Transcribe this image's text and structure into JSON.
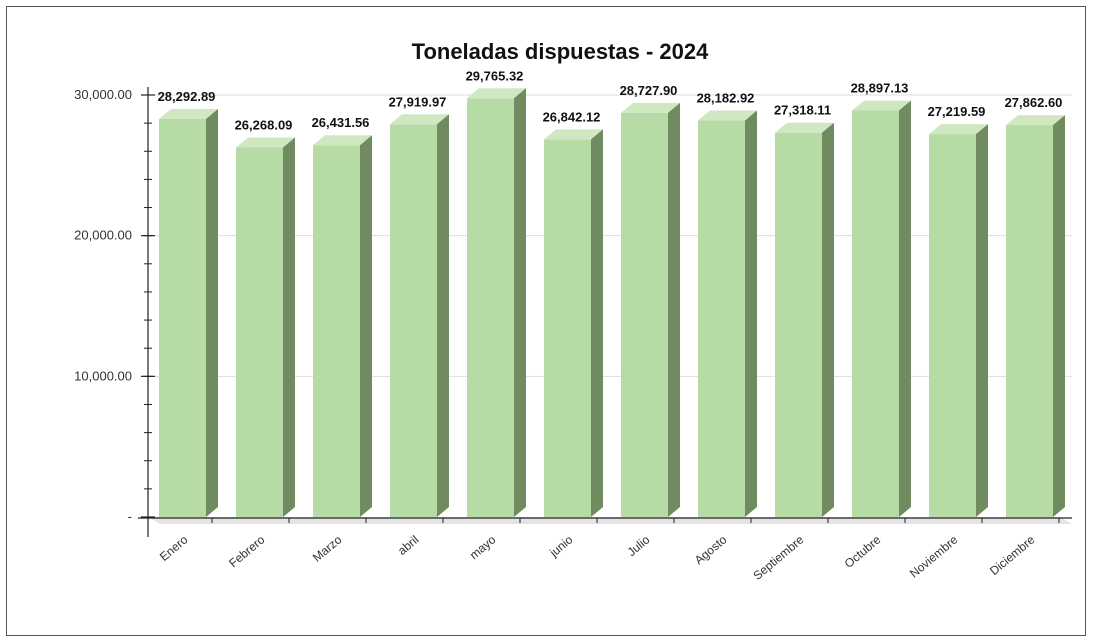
{
  "chart_data": {
    "type": "bar",
    "title": "Toneladas dispuestas - 2024",
    "xlabel": "",
    "ylabel": "",
    "categories": [
      "Enero",
      "Febrero",
      "Marzo",
      "abril",
      "mayo",
      "junio",
      "Julio",
      "Agosto",
      "Septiembre",
      "Octubre",
      "Noviembre",
      "Diciembre"
    ],
    "values": [
      28292.89,
      26268.09,
      26431.56,
      27919.97,
      29765.32,
      26842.12,
      28727.9,
      28182.92,
      27318.11,
      28897.13,
      27219.59,
      27862.6
    ],
    "data_labels": [
      "28,292.89",
      "26,268.09",
      "26,431.56",
      "27,919.97",
      "29,765.32",
      "26,842.12",
      "28,727.90",
      "28,182.92",
      "27,318.11",
      "28,897.13",
      "27,219.59",
      "27,862.60"
    ],
    "y_ticks": [
      0,
      10000,
      20000,
      30000
    ],
    "y_tick_labels": [
      "-",
      "10,000.00",
      "20,000.00",
      "30,000.00"
    ],
    "ylim": [
      0,
      30000
    ],
    "grid": true,
    "legend": "none",
    "style": "3d",
    "colors": {
      "bar_front": "#b7dba5",
      "bar_top": "#cfe8c2",
      "bar_side": "#6f8b5f",
      "grid": "#dddddd",
      "floor": "#e4e4e4"
    }
  }
}
